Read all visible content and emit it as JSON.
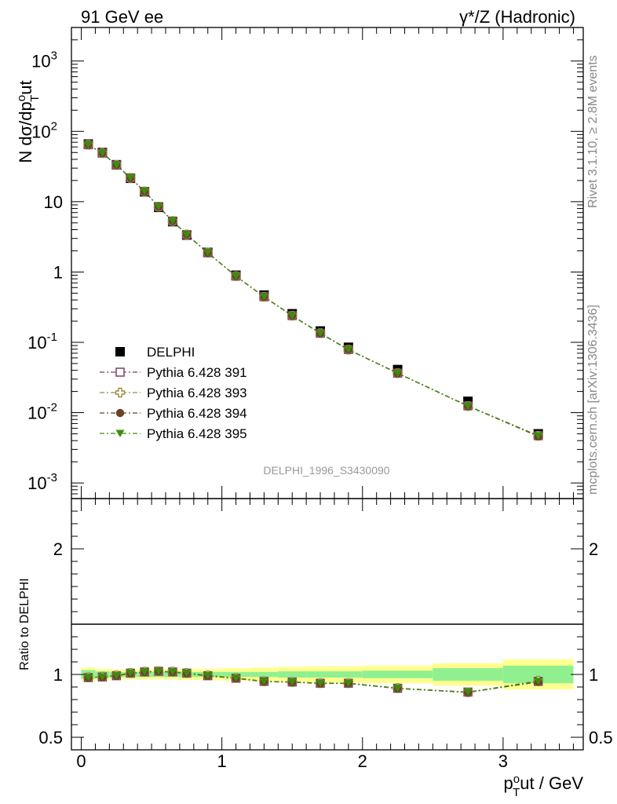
{
  "header": {
    "left": "91 GeV ee",
    "right": "γ*/Z (Hadronic)"
  },
  "side": {
    "rivet": "Rivet 3.1.10, ≥ 2.8M events",
    "mcplots": "mcplots.cern.ch [arXiv:1306.3436]"
  },
  "watermark": "DELPHI_1996_S3430090",
  "chart_data": [
    {
      "type": "scatter",
      "panel": "main",
      "ylabel": "N dσ/dp_T^out",
      "yscale": "log",
      "ylim": [
        0.0006,
        3000
      ],
      "xlim": [
        -0.07,
        3.57
      ],
      "yticks": [
        {
          "value": 0.001,
          "label": "10",
          "exp": "-3"
        },
        {
          "value": 0.01,
          "label": "10",
          "exp": "-2"
        },
        {
          "value": 0.1,
          "label": "10",
          "exp": "-1"
        },
        {
          "value": 1,
          "label": "1",
          "exp": ""
        },
        {
          "value": 10,
          "label": "10",
          "exp": ""
        },
        {
          "value": 100,
          "label": "10",
          "exp": "2"
        },
        {
          "value": 1000,
          "label": "10",
          "exp": "3"
        }
      ],
      "legend_position": "lower-left",
      "x": [
        0.05,
        0.15,
        0.25,
        0.35,
        0.45,
        0.55,
        0.65,
        0.75,
        0.9,
        1.1,
        1.3,
        1.5,
        1.7,
        1.9,
        2.25,
        2.75,
        3.25
      ],
      "data": {
        "name": "DELPHI",
        "color": "#000000",
        "values": [
          66,
          50,
          33.5,
          21.5,
          13.8,
          8.3,
          5.2,
          3.35,
          1.9,
          0.9,
          0.47,
          0.255,
          0.145,
          0.085,
          0.041,
          0.0145,
          0.005
        ]
      },
      "series": [
        {
          "name": "Pythia 6.428 391",
          "color": "#7b3f6b",
          "marker": "open-square",
          "values": [
            64.5,
            49,
            33.2,
            21.8,
            14.0,
            8.5,
            5.3,
            3.4,
            1.88,
            0.875,
            0.445,
            0.24,
            0.135,
            0.079,
            0.0365,
            0.0125,
            0.0047
          ]
        },
        {
          "name": "Pythia 6.428 393",
          "color": "#9c8a42",
          "marker": "open-cross",
          "values": [
            64.6,
            49.1,
            33.2,
            21.8,
            14.0,
            8.5,
            5.3,
            3.41,
            1.88,
            0.874,
            0.444,
            0.239,
            0.135,
            0.0788,
            0.0364,
            0.0124,
            0.0047
          ]
        },
        {
          "name": "Pythia 6.428 394",
          "color": "#6b4226",
          "marker": "filled-circle",
          "values": [
            64.3,
            48.9,
            33.1,
            21.7,
            13.9,
            8.5,
            5.3,
            3.4,
            1.87,
            0.872,
            0.443,
            0.239,
            0.134,
            0.0786,
            0.0363,
            0.0124,
            0.0046
          ]
        },
        {
          "name": "Pythia 6.428 395",
          "color": "#3d8c0f",
          "marker": "filled-triangle-down",
          "values": [
            64.4,
            49,
            33.2,
            21.8,
            14.0,
            8.5,
            5.3,
            3.4,
            1.88,
            0.873,
            0.444,
            0.239,
            0.135,
            0.0787,
            0.0364,
            0.0124,
            0.0047
          ]
        }
      ]
    },
    {
      "type": "scatter",
      "panel": "ratio",
      "ylabel": "Ratio to DELPHI",
      "xlabel": "p_T^out / GeV",
      "ylim": [
        0.4,
        2.4
      ],
      "xlim": [
        -0.07,
        3.57
      ],
      "yticks": [
        {
          "value": 0.5,
          "label": "0.5"
        },
        {
          "value": 1,
          "label": "1"
        },
        {
          "value": 2,
          "label": "2"
        }
      ],
      "xticks": [
        {
          "value": 0,
          "label": "0"
        },
        {
          "value": 1,
          "label": "1"
        },
        {
          "value": 2,
          "label": "2"
        },
        {
          "value": 3,
          "label": "3"
        }
      ],
      "bin_edges": [
        0,
        0.1,
        0.2,
        0.3,
        0.4,
        0.5,
        0.6,
        0.7,
        0.8,
        1.0,
        1.2,
        1.4,
        1.6,
        1.8,
        2.0,
        2.5,
        3.0,
        3.5
      ],
      "band_stat": [
        0.035,
        0.025,
        0.02,
        0.02,
        0.02,
        0.02,
        0.02,
        0.02,
        0.02,
        0.02,
        0.02,
        0.025,
        0.025,
        0.025,
        0.03,
        0.05,
        0.07
      ],
      "band_total": [
        0.055,
        0.045,
        0.04,
        0.04,
        0.04,
        0.04,
        0.04,
        0.045,
        0.045,
        0.05,
        0.055,
        0.06,
        0.065,
        0.065,
        0.07,
        0.09,
        0.12
      ],
      "band_stat_color": "#90f090",
      "band_total_color": "#ffff90",
      "x": [
        0.05,
        0.15,
        0.25,
        0.35,
        0.45,
        0.55,
        0.65,
        0.75,
        0.9,
        1.1,
        1.3,
        1.5,
        1.7,
        1.9,
        2.25,
        2.75,
        3.25
      ],
      "series": [
        {
          "name": "Pythia 6.428 391",
          "color": "#7b3f6b",
          "marker": "open-square",
          "values": [
            0.975,
            0.98,
            0.99,
            1.01,
            1.02,
            1.025,
            1.02,
            1.01,
            0.99,
            0.97,
            0.945,
            0.94,
            0.93,
            0.93,
            0.89,
            0.86,
            0.945
          ]
        },
        {
          "name": "Pythia 6.428 393",
          "color": "#9c8a42",
          "marker": "open-cross",
          "values": [
            0.977,
            0.982,
            0.992,
            1.012,
            1.022,
            1.026,
            1.022,
            1.012,
            0.992,
            0.972,
            0.946,
            0.94,
            0.931,
            0.931,
            0.891,
            0.858,
            0.95
          ]
        },
        {
          "name": "Pythia 6.428 394",
          "color": "#6b4226",
          "marker": "filled-circle",
          "values": [
            0.973,
            0.978,
            0.988,
            1.008,
            1.018,
            1.024,
            1.018,
            1.008,
            0.988,
            0.968,
            0.943,
            0.938,
            0.928,
            0.928,
            0.888,
            0.857,
            0.94
          ]
        },
        {
          "name": "Pythia 6.428 395",
          "color": "#3d8c0f",
          "marker": "filled-triangle-down",
          "values": [
            0.976,
            0.981,
            0.991,
            1.011,
            1.021,
            1.025,
            1.021,
            1.011,
            0.991,
            0.971,
            0.945,
            0.939,
            0.93,
            0.93,
            0.89,
            0.859,
            0.945
          ]
        }
      ]
    }
  ]
}
